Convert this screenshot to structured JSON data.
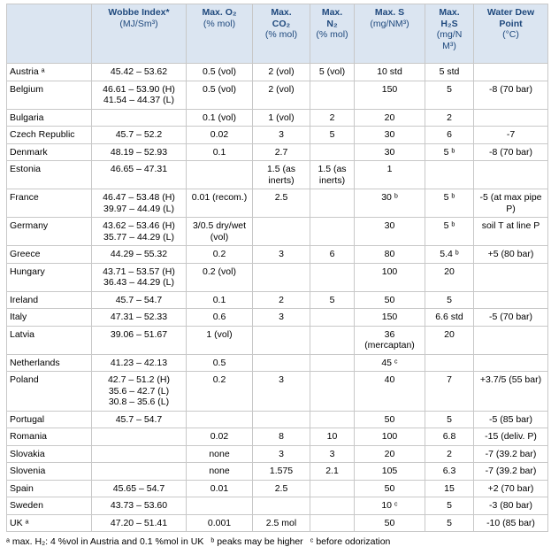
{
  "table": {
    "header": [
      {
        "title": "Wobbe Index*",
        "unit": "(MJ/Sm³)"
      },
      {
        "title": "Max. O₂",
        "unit": "(% mol)"
      },
      {
        "title": "Max.\nCO₂",
        "unit": "(% mol)"
      },
      {
        "title": "Max.\nN₂",
        "unit": "(% mol)"
      },
      {
        "title": "Max. S",
        "unit": "(mg/NM³)"
      },
      {
        "title": "Max.\nH₂S",
        "unit": "(mg/N\nM³)"
      },
      {
        "title": "Water Dew\nPoint",
        "unit": "(°C)"
      }
    ],
    "rows": [
      [
        "Austria ᵃ",
        "45.42 – 53.62",
        "0.5 (vol)",
        "2 (vol)",
        "5 (vol)",
        "10 std",
        "5 std",
        null
      ],
      [
        "Belgium",
        "46.61 – 53.90 (H)\n41.54 – 44.37 (L)",
        "0.5 (vol)",
        "2 (vol)",
        null,
        "150",
        "5",
        "-8 (70 bar)"
      ],
      [
        "Bulgaria",
        null,
        "0.1 (vol)",
        "1 (vol)",
        "2",
        "20",
        "2",
        null
      ],
      [
        "Czech Republic",
        "45.7 – 52.2",
        "0.02",
        "3",
        "5",
        "30",
        "6",
        "-7"
      ],
      [
        "Denmark",
        "48.19 – 52.93",
        "0.1",
        "2.7",
        null,
        "30",
        "5 ᵇ",
        "-8 (70 bar)"
      ],
      [
        "Estonia",
        "46.65 – 47.31",
        null,
        "1.5 (as inerts)",
        "1.5 (as inerts)",
        "1",
        null,
        null
      ],
      [
        "France",
        "46.47 – 53.48 (H)\n39.97 – 44.49 (L)",
        "0.01 (recom.)",
        "2.5",
        null,
        "30 ᵇ",
        "5 ᵇ",
        "-5 (at max pipe P)"
      ],
      [
        "Germany",
        "43.62 – 53.46 (H)\n35.77 – 44.29 (L)",
        "3/0.5 dry/wet (vol)",
        null,
        null,
        "30",
        "5 ᵇ",
        "soil T at line P"
      ],
      [
        "Greece",
        "44.29 – 55.32",
        "0.2",
        "3",
        "6",
        "80",
        "5.4 ᵇ",
        "+5 (80 bar)"
      ],
      [
        "Hungary",
        "43.71 – 53.57 (H)\n36.43 – 44.29 (L)",
        "0.2 (vol)",
        null,
        null,
        "100",
        "20",
        null
      ],
      [
        "Ireland",
        "45.7 – 54.7",
        "0.1",
        "2",
        "5",
        "50",
        "5",
        null
      ],
      [
        "Italy",
        "47.31 – 52.33",
        "0.6",
        "3",
        null,
        "150",
        "6.6 std",
        "-5 (70 bar)"
      ],
      [
        "Latvia",
        "39.06 – 51.67",
        "1 (vol)",
        null,
        null,
        "36\n(mercaptan)",
        "20",
        null
      ],
      [
        "Netherlands",
        "41.23 – 42.13",
        "0.5",
        null,
        null,
        "45 ᶜ",
        null,
        null
      ],
      [
        "Poland",
        "42.7 – 51.2 (H)\n35.6 – 42.7 (L)\n30.8 – 35.6 (L)",
        "0.2",
        "3",
        null,
        "40",
        "7",
        "+3.7/5 (55 bar)"
      ],
      [
        "Portugal",
        "45.7 – 54.7",
        null,
        null,
        null,
        "50",
        "5",
        "-5 (85 bar)"
      ],
      [
        "Romania",
        null,
        "0.02",
        "8",
        "10",
        "100",
        "6.8",
        "-15 (deliv. P)"
      ],
      [
        "Slovakia",
        null,
        "none",
        "3",
        "3",
        "20",
        "2",
        "-7 (39.2 bar)"
      ],
      [
        "Slovenia",
        null,
        "none",
        "1.575",
        "2.1",
        "105",
        "6.3",
        "-7 (39.2 bar)"
      ],
      [
        "Spain",
        "45.65 – 54.7",
        "0.01",
        "2.5",
        null,
        "50",
        "15",
        "+2 (70 bar)"
      ],
      [
        "Sweden",
        "43.73 – 53.60",
        null,
        null,
        null,
        "10 ᶜ",
        "5",
        "-3 (80 bar)"
      ],
      [
        "UK ᵃ",
        "47.20 – 51.41",
        "0.001",
        "2.5 mol",
        null,
        "50",
        "5",
        "-10 (85 bar)"
      ]
    ]
  },
  "footnotes": [
    "ᵃ max. H₂: 4 %vol in Austria and 0.1 %mol in UK",
    "ᵇ peaks may be higher",
    "ᶜ before odorization"
  ]
}
